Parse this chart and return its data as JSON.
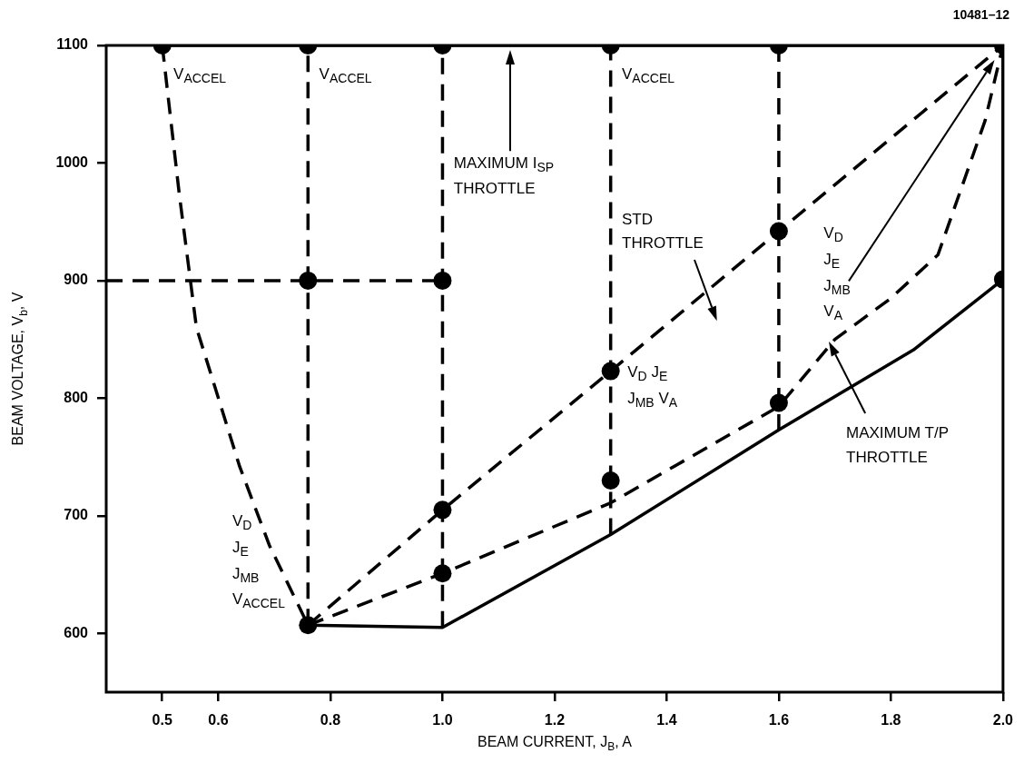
{
  "chart_data": {
    "type": "line",
    "xlabel": "BEAM CURRENT, J$_{B}$, A",
    "ylabel": "BEAM VOLTAGE, V$_{b}$, V",
    "xlim": [
      0.4,
      2.0
    ],
    "ylim": [
      550,
      1100
    ],
    "xticks": [
      0.5,
      0.6,
      0.8,
      {
        "value": 1,
        "label": "1.0"
      },
      1.2,
      1.4,
      1.6,
      1.8,
      {
        "value": 2,
        "label": "2.0"
      }
    ],
    "yticks": [
      600,
      700,
      800,
      900,
      1000,
      1100
    ],
    "series": [
      {
        "color": "#000000",
        "line_style": "solid",
        "marker": "none",
        "x": [
          0.5,
          2.0
        ],
        "values": [
          1100,
          1100
        ]
      },
      {
        "color": "#000000",
        "line_style": "dashed",
        "marker": "none",
        "x": [
          0.5,
          0.53,
          0.561,
          0.638,
          0.691,
          0.76
        ],
        "values": [
          1100,
          975,
          860,
          742,
          675,
          607
        ]
      },
      {
        "color": "#000000",
        "line_style": "dashed",
        "marker": "none",
        "x": [
          0.4,
          1.0
        ],
        "values": [
          900,
          900
        ]
      },
      {
        "color": "#000000",
        "line_style": "dashed",
        "marker": "none",
        "x": [
          0.76,
          0.76
        ],
        "values": [
          607,
          1100
        ]
      },
      {
        "color": "#000000",
        "line_style": "dashed",
        "marker": "none",
        "x": [
          1.0,
          1.0
        ],
        "values": [
          605,
          1100
        ]
      },
      {
        "color": "#000000",
        "line_style": "dashed",
        "marker": "none",
        "x": [
          1.3,
          1.3
        ],
        "values": [
          684,
          1100
        ]
      },
      {
        "color": "#000000",
        "line_style": "dashed",
        "marker": "none",
        "x": [
          1.6,
          1.6
        ],
        "values": [
          1100,
          773
        ]
      },
      {
        "color": "#000000",
        "line_style": "solid",
        "marker": "none",
        "x": [
          2.0,
          2.0
        ],
        "values": [
          901,
          1100
        ]
      },
      {
        "color": "#000000",
        "line_style": "dashed",
        "marker": "none",
        "x": [
          0.76,
          1.0,
          1.3,
          1.6,
          2.0
        ],
        "values": [
          607,
          705,
          823,
          942,
          1100
        ]
      },
      {
        "color": "#000000",
        "line_style": "dashed",
        "marker": "none",
        "x": [
          0.76,
          1.0,
          1.3,
          1.6,
          1.7,
          1.8,
          1.884,
          1.968,
          2.0
        ],
        "values": [
          607,
          651,
          711,
          793,
          850,
          885,
          922,
          1036,
          1100
        ]
      },
      {
        "color": "#000000",
        "line_style": "solid",
        "marker": "none",
        "x": [
          0.76,
          1.0,
          1.3,
          1.6,
          1.84,
          2.0
        ],
        "values": [
          607,
          605,
          684,
          773,
          841,
          901
        ]
      },
      {
        "type": "scatter",
        "color": "#000000",
        "marker": "circle",
        "x": [
          0.5,
          0.76,
          1.0,
          1.3,
          1.6,
          2.0,
          0.76,
          1.0,
          1.0,
          1.0,
          1.3,
          1.3,
          1.6,
          1.6,
          2.0,
          0.76
        ],
        "values": [
          1100,
          1100,
          1100,
          1100,
          1100,
          1100,
          900,
          900,
          705,
          651,
          823,
          730,
          942,
          796,
          901,
          607
        ]
      }
    ],
    "annotations": [
      "V$_{ACCEL}$",
      "V$_{ACCEL}$",
      "V$_{ACCEL}$",
      "MAXIMUM I$_{SP}$\nTHROTTLE",
      "STD\nTHROTTLE",
      "V$_{D}$\nJ$_{E}$\nJ$_{MB}$\nV$_{A}$",
      "V$_{D}$ J$_{E}$\nJ$_{MB}$ V$_{A}$",
      "MAXIMUM T/P\nTHROTTLE",
      "V$_{D}$\nJ$_{E}$\nJ$_{MB}$\nV$_{ACCEL}$",
      "10481–12"
    ]
  }
}
